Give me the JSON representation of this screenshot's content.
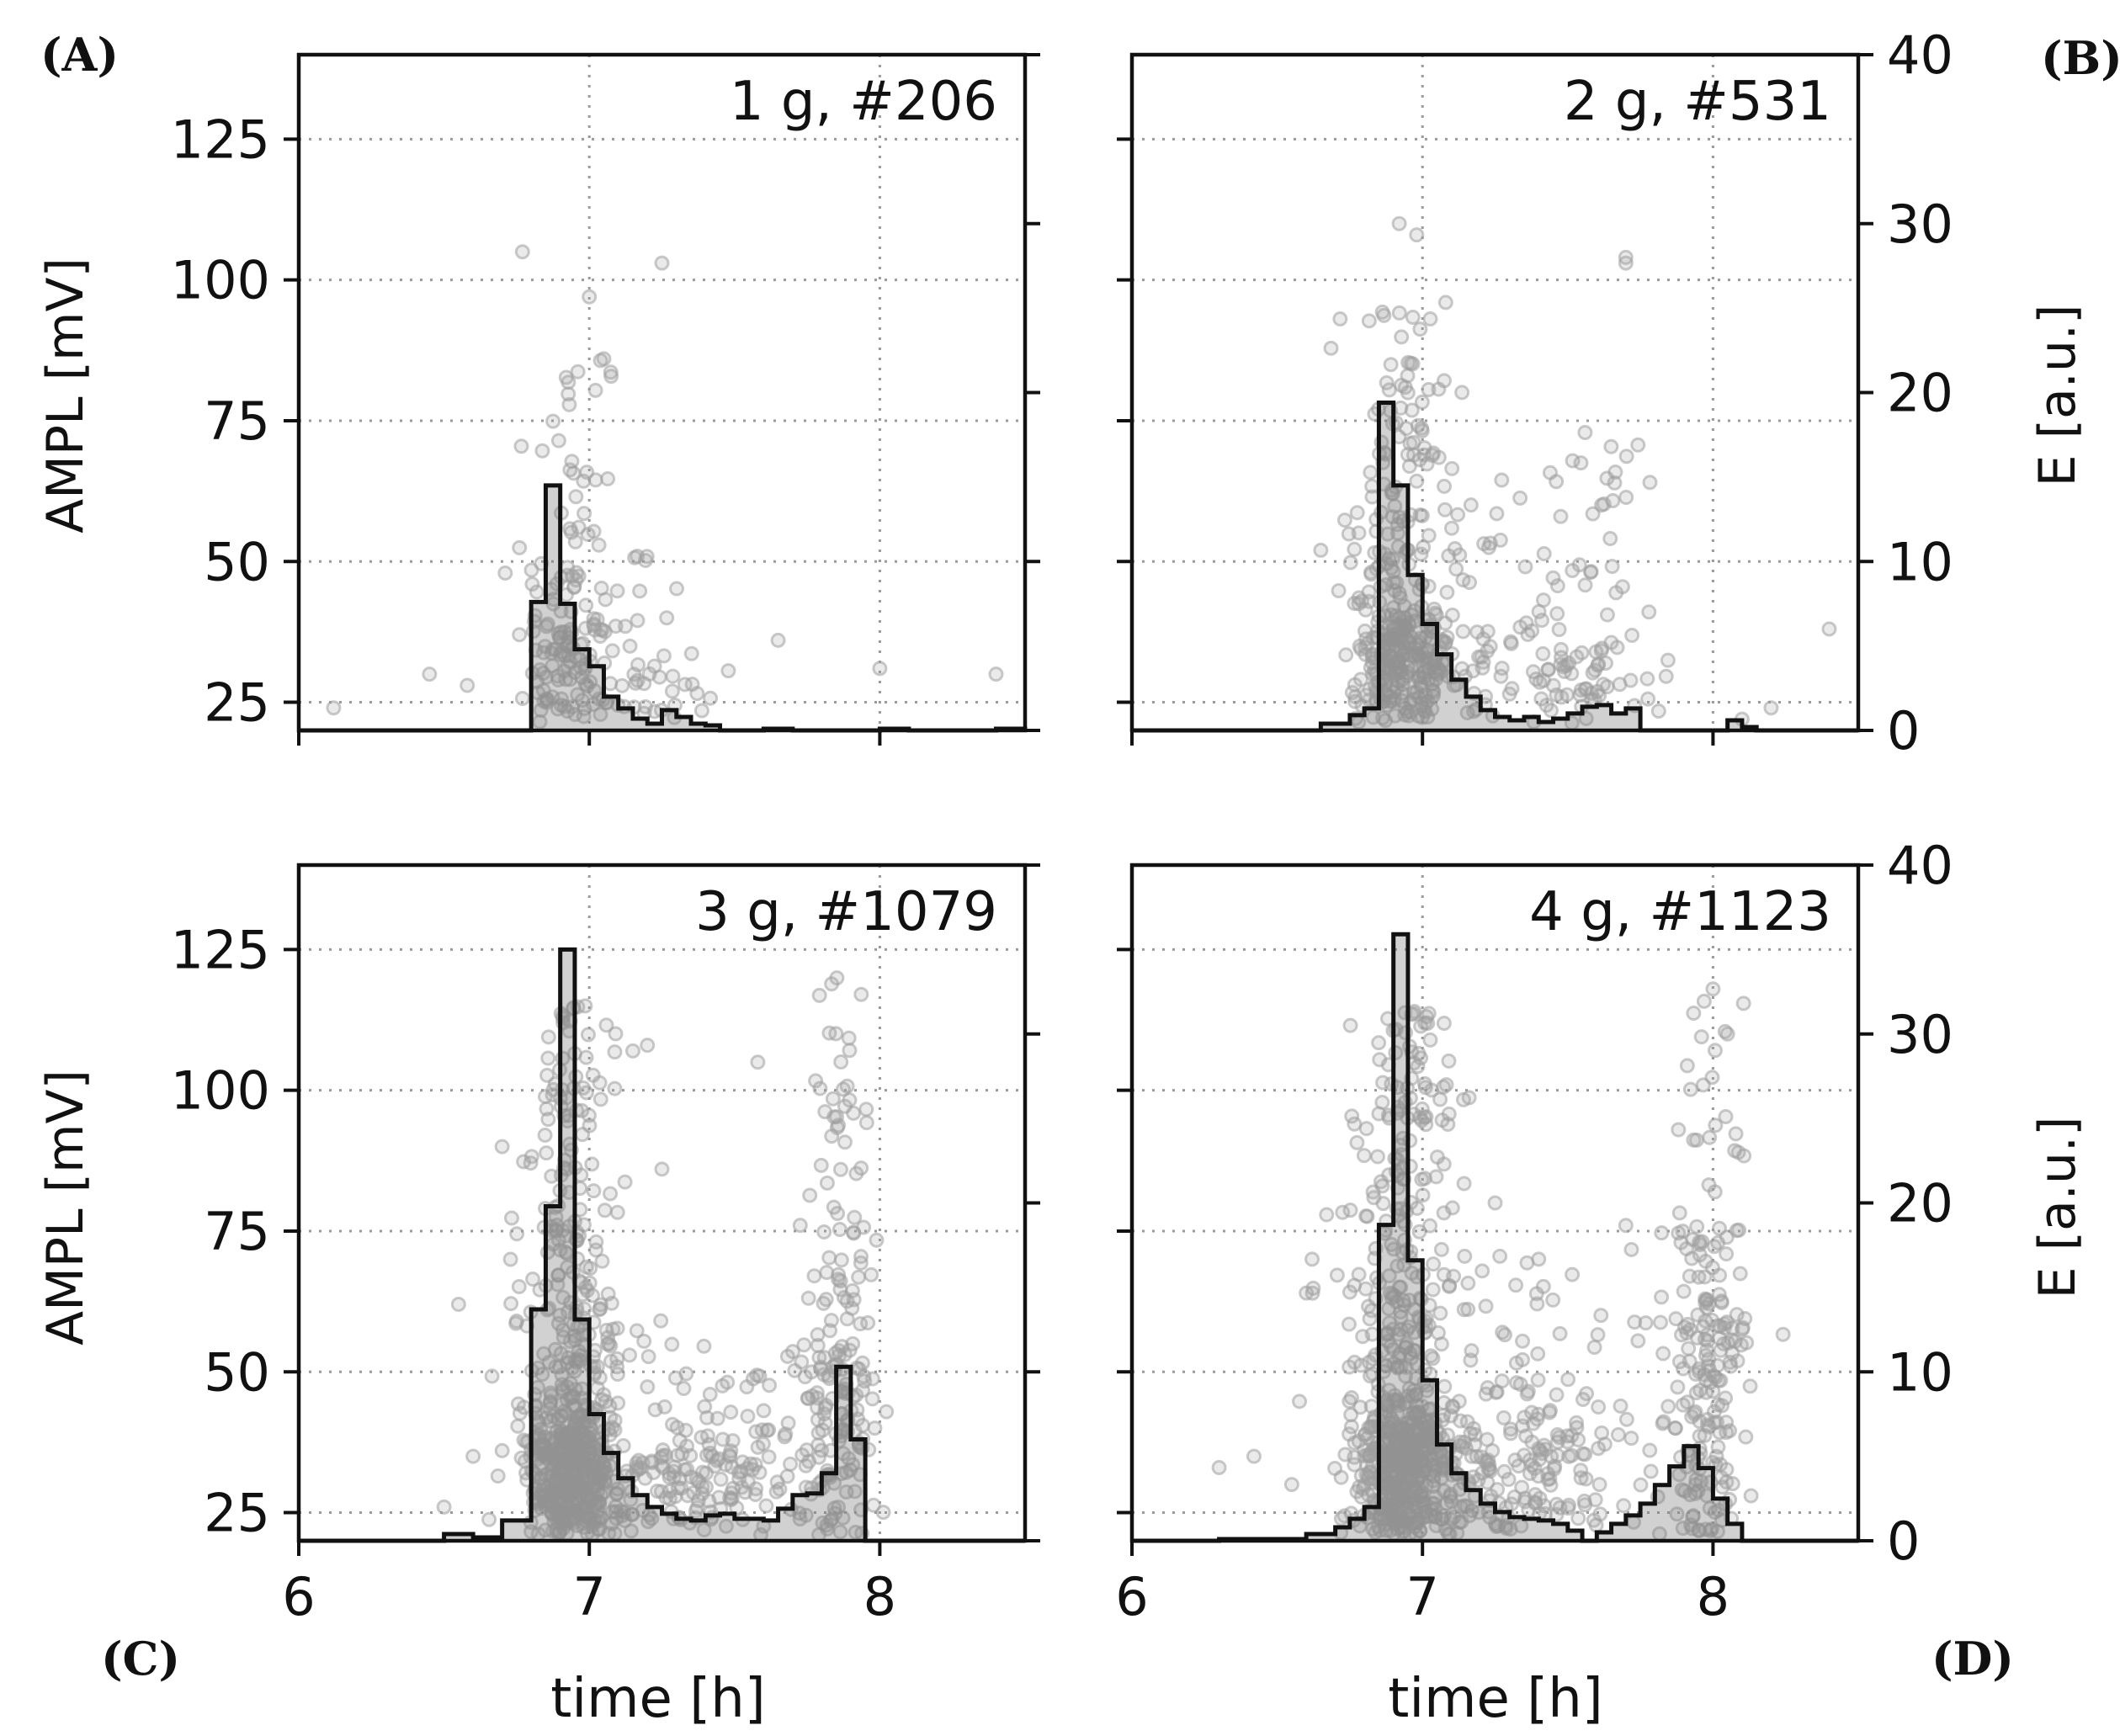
{
  "figure": {
    "xlabel": "time [h]",
    "ylabel_left": "AMPL [mV]",
    "ylabel_right": "E [a.u.]",
    "colors": {
      "scatter": "#9e9e9e",
      "hist": "#111111",
      "hist_fill": "#7a7a7a",
      "grid": "#9a9a9a"
    }
  },
  "chart_data": [
    {
      "type": "scatter+histogram",
      "panel_label": "(A)",
      "annotation": "1 g, #206",
      "xlim": [
        6.0,
        8.5
      ],
      "xticks": [
        "6",
        "7",
        "8"
      ],
      "ylim_left": [
        20,
        140
      ],
      "yticks_left": [
        "25",
        "50",
        "75",
        "100",
        "125"
      ],
      "ylim_right": [
        0,
        40
      ],
      "yticks_right": [
        "0",
        "10",
        "20",
        "30",
        "40"
      ],
      "histogram": {
        "bin_edges": [
          6.0,
          6.1,
          6.2,
          6.3,
          6.4,
          6.5,
          6.6,
          6.7,
          6.75,
          6.8,
          6.85,
          6.9,
          6.95,
          7.0,
          7.05,
          7.1,
          7.15,
          7.2,
          7.25,
          7.3,
          7.35,
          7.4,
          7.45,
          7.5,
          7.6,
          7.7,
          7.8,
          7.9,
          8.0,
          8.1,
          8.2,
          8.3,
          8.4,
          8.5
        ],
        "values": [
          0,
          0,
          0,
          0,
          0,
          0,
          0,
          0,
          0,
          7.6,
          14.5,
          7.5,
          4.8,
          3.8,
          2.0,
          1.3,
          0.7,
          0.4,
          1.2,
          0.8,
          0.4,
          0.3,
          0,
          0,
          0.1,
          0,
          0,
          0,
          0.1,
          0,
          0,
          0,
          0.1
        ]
      },
      "scatter": {
        "n_total": 206,
        "clusters": [
          {
            "x_mean": 6.93,
            "x_sd": 0.08,
            "y_min": 21,
            "y_peak": 32,
            "y_max": 90,
            "count": 150
          },
          {
            "x_mean": 7.2,
            "x_sd": 0.12,
            "y_min": 21,
            "y_peak": 28,
            "y_max": 52,
            "count": 42
          }
        ],
        "outliers": [
          [
            6.12,
            24
          ],
          [
            6.45,
            30
          ],
          [
            6.58,
            28
          ],
          [
            6.77,
            105
          ],
          [
            7.0,
            97
          ],
          [
            7.05,
            86
          ],
          [
            7.25,
            103
          ],
          [
            7.65,
            36
          ],
          [
            8.0,
            31
          ],
          [
            8.4,
            30
          ]
        ]
      }
    },
    {
      "type": "scatter+histogram",
      "panel_label": "(B)",
      "annotation": "2 g, #531",
      "xlim": [
        6.0,
        8.5
      ],
      "xticks": [
        "6",
        "7",
        "8"
      ],
      "ylim_left": [
        20,
        140
      ],
      "yticks_left": [
        "25",
        "50",
        "75",
        "100",
        "125"
      ],
      "ylim_right": [
        0,
        40
      ],
      "yticks_right": [
        "0",
        "10",
        "20",
        "30",
        "40"
      ],
      "histogram": {
        "bin_edges": [
          6.0,
          6.1,
          6.2,
          6.3,
          6.4,
          6.5,
          6.6,
          6.65,
          6.7,
          6.75,
          6.8,
          6.85,
          6.9,
          6.95,
          7.0,
          7.05,
          7.1,
          7.15,
          7.2,
          7.25,
          7.3,
          7.35,
          7.4,
          7.45,
          7.5,
          7.55,
          7.6,
          7.65,
          7.7,
          7.75,
          7.8,
          7.9,
          8.0,
          8.05,
          8.1,
          8.15,
          8.2,
          8.3,
          8.4,
          8.5
        ],
        "values": [
          0,
          0,
          0,
          0,
          0,
          0,
          0,
          0.4,
          0.4,
          0.9,
          1.3,
          19.4,
          14.5,
          9.2,
          6.3,
          4.5,
          3.0,
          2.0,
          1.2,
          0.8,
          0.6,
          0.8,
          0.5,
          0.7,
          1.0,
          1.4,
          1.5,
          1.0,
          1.3,
          0,
          0,
          0,
          0,
          0.6,
          0.2,
          0,
          0,
          0,
          0
        ]
      },
      "scatter": {
        "n_total": 531,
        "clusters": [
          {
            "x_mean": 6.92,
            "x_sd": 0.08,
            "y_min": 21,
            "y_peak": 32,
            "y_max": 95,
            "count": 330
          },
          {
            "x_mean": 7.25,
            "x_sd": 0.22,
            "y_min": 21,
            "y_peak": 30,
            "y_max": 70,
            "count": 120
          },
          {
            "x_mean": 7.6,
            "x_sd": 0.1,
            "y_min": 21,
            "y_peak": 30,
            "y_max": 75,
            "count": 60
          }
        ],
        "outliers": [
          [
            6.92,
            110
          ],
          [
            6.98,
            108
          ],
          [
            7.08,
            96
          ],
          [
            7.7,
            103
          ],
          [
            7.7,
            104
          ],
          [
            8.1,
            22
          ],
          [
            8.2,
            24
          ],
          [
            8.4,
            38
          ],
          [
            6.65,
            52
          ]
        ]
      }
    },
    {
      "type": "scatter+histogram",
      "panel_label": "(C)",
      "annotation": "3 g, #1079",
      "xlim": [
        6.0,
        8.5
      ],
      "xticks": [
        "6",
        "7",
        "8"
      ],
      "ylim_left": [
        20,
        140
      ],
      "yticks_left": [
        "25",
        "50",
        "75",
        "100",
        "125"
      ],
      "ylim_right": [
        0,
        40
      ],
      "yticks_right": [
        "0",
        "10",
        "20",
        "30",
        "40"
      ],
      "histogram": {
        "bin_edges": [
          6.0,
          6.1,
          6.2,
          6.3,
          6.4,
          6.5,
          6.6,
          6.7,
          6.8,
          6.85,
          6.9,
          6.95,
          7.0,
          7.05,
          7.1,
          7.15,
          7.2,
          7.25,
          7.3,
          7.35,
          7.4,
          7.45,
          7.5,
          7.55,
          7.6,
          7.65,
          7.7,
          7.75,
          7.8,
          7.85,
          7.9,
          7.95,
          8.0,
          8.1,
          8.2,
          8.3,
          8.4,
          8.5
        ],
        "values": [
          0,
          0,
          0,
          0,
          0,
          0.4,
          0.2,
          1.2,
          13.7,
          19.8,
          35.0,
          13.1,
          7.5,
          5.2,
          3.7,
          2.7,
          2.0,
          1.6,
          1.3,
          1.2,
          1.5,
          1.6,
          1.3,
          1.3,
          1.2,
          1.9,
          2.7,
          2.8,
          4.0,
          10.3,
          6.0,
          0,
          0,
          0,
          0,
          0,
          0
        ]
      },
      "scatter": {
        "n_total": 1079,
        "clusters": [
          {
            "x_mean": 6.93,
            "x_sd": 0.08,
            "y_min": 21,
            "y_peak": 32,
            "y_max": 115,
            "count": 620
          },
          {
            "x_mean": 7.35,
            "x_sd": 0.25,
            "y_min": 21,
            "y_peak": 30,
            "y_max": 60,
            "count": 220
          },
          {
            "x_mean": 7.85,
            "x_sd": 0.06,
            "y_min": 21,
            "y_peak": 40,
            "y_max": 120,
            "count": 180
          }
        ],
        "outliers": [
          [
            6.5,
            26
          ],
          [
            6.55,
            62
          ],
          [
            6.7,
            90
          ],
          [
            6.7,
            36
          ],
          [
            6.75,
            59
          ],
          [
            7.15,
            107
          ],
          [
            7.2,
            108
          ],
          [
            7.25,
            86
          ],
          [
            7.58,
            105
          ],
          [
            6.6,
            35
          ]
        ]
      }
    },
    {
      "type": "scatter+histogram",
      "panel_label": "(D)",
      "annotation": "4 g, #1123",
      "xlim": [
        6.0,
        8.5
      ],
      "xticks": [
        "6",
        "7",
        "8"
      ],
      "ylim_left": [
        20,
        140
      ],
      "yticks_left": [
        "25",
        "50",
        "75",
        "100",
        "125"
      ],
      "ylim_right": [
        0,
        40
      ],
      "yticks_right": [
        "0",
        "10",
        "20",
        "30",
        "40"
      ],
      "histogram": {
        "bin_edges": [
          6.0,
          6.1,
          6.2,
          6.3,
          6.4,
          6.5,
          6.6,
          6.7,
          6.75,
          6.8,
          6.85,
          6.9,
          6.95,
          7.0,
          7.05,
          7.1,
          7.15,
          7.2,
          7.25,
          7.3,
          7.35,
          7.4,
          7.45,
          7.5,
          7.55,
          7.6,
          7.65,
          7.7,
          7.75,
          7.8,
          7.85,
          7.9,
          7.95,
          8.0,
          8.05,
          8.1,
          8.15,
          8.2,
          8.3,
          8.4,
          8.5
        ],
        "values": [
          0,
          0,
          0,
          0.1,
          0.1,
          0.1,
          0.4,
          0.8,
          1.3,
          2.0,
          18.7,
          35.9,
          16.6,
          9.5,
          5.7,
          4.0,
          3.0,
          2.2,
          1.7,
          1.4,
          1.3,
          1.2,
          1.0,
          0.6,
          0,
          0.5,
          1.0,
          1.5,
          2.2,
          3.3,
          4.4,
          5.6,
          4.3,
          2.5,
          1.0,
          0,
          0,
          0,
          0,
          0
        ]
      },
      "scatter": {
        "n_total": 1123,
        "clusters": [
          {
            "x_mean": 6.93,
            "x_sd": 0.09,
            "y_min": 21,
            "y_peak": 32,
            "y_max": 115,
            "count": 650
          },
          {
            "x_mean": 7.3,
            "x_sd": 0.25,
            "y_min": 21,
            "y_peak": 32,
            "y_max": 72,
            "count": 240
          },
          {
            "x_mean": 7.98,
            "x_sd": 0.07,
            "y_min": 21,
            "y_peak": 45,
            "y_max": 125,
            "count": 200
          }
        ],
        "outliers": [
          [
            6.3,
            33
          ],
          [
            6.42,
            35
          ],
          [
            6.55,
            30
          ],
          [
            6.6,
            64
          ],
          [
            6.62,
            70
          ],
          [
            7.25,
            80
          ],
          [
            7.4,
            70
          ],
          [
            7.7,
            76
          ],
          [
            8.05,
            110
          ],
          [
            8.0,
            118
          ]
        ]
      }
    }
  ]
}
